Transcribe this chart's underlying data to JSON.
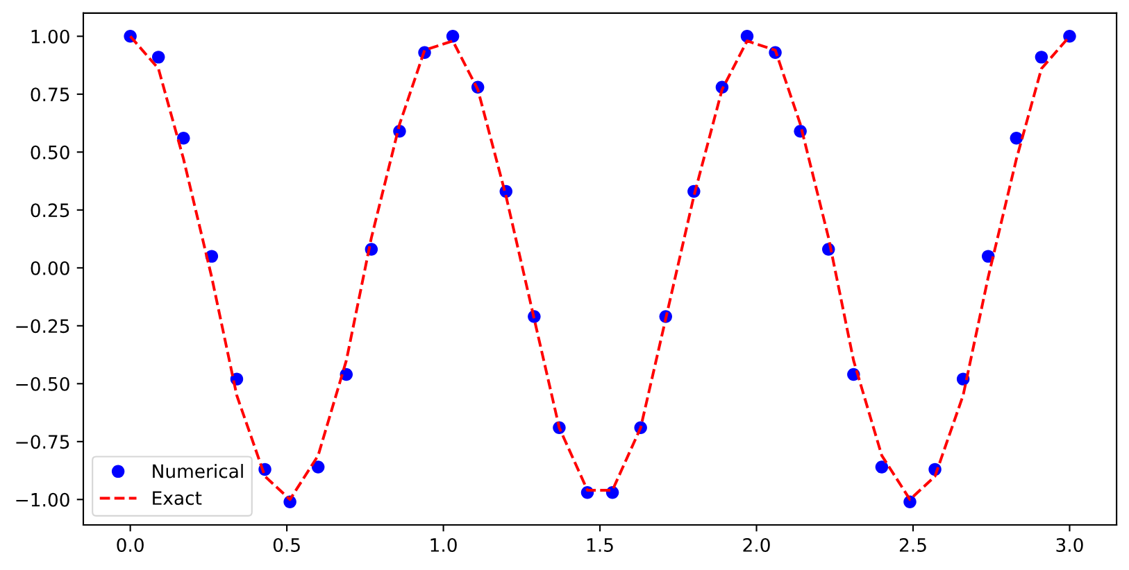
{
  "chart_data": {
    "type": "line",
    "x": [
      0,
      0.09,
      0.17,
      0.26,
      0.34,
      0.43,
      0.51,
      0.6,
      0.69,
      0.77,
      0.86,
      0.94,
      1.03,
      1.11,
      1.2,
      1.29,
      1.37,
      1.46,
      1.54,
      1.63,
      1.71,
      1.8,
      1.89,
      1.97,
      2.06,
      2.14,
      2.23,
      2.31,
      2.4,
      2.49,
      2.57,
      2.66,
      2.74,
      2.83,
      2.91,
      3.0
    ],
    "series": [
      {
        "name": "Numerical",
        "type": "scatter",
        "color": "#0000ff",
        "marker": "circle",
        "values": [
          1.0,
          0.91,
          0.56,
          0.05,
          -0.48,
          -0.87,
          -1.01,
          -0.86,
          -0.46,
          0.08,
          0.59,
          0.93,
          1.0,
          0.78,
          0.33,
          -0.21,
          -0.69,
          -0.97,
          -0.97,
          -0.69,
          -0.21,
          0.33,
          0.78,
          1.0,
          0.93,
          0.59,
          0.08,
          -0.46,
          -0.86,
          -1.01,
          -0.87,
          -0.48,
          0.05,
          0.56,
          0.91,
          1.0
        ]
      },
      {
        "name": "Exact",
        "color": "#ff0000",
        "line_style": "dashed",
        "values": [
          1.0,
          0.86,
          0.47,
          -0.04,
          -0.55,
          -0.9,
          -1.0,
          -0.81,
          -0.4,
          0.13,
          0.62,
          0.94,
          0.98,
          0.77,
          0.31,
          -0.22,
          -0.69,
          -0.96,
          -0.96,
          -0.69,
          -0.22,
          0.31,
          0.77,
          0.98,
          0.94,
          0.62,
          0.13,
          -0.4,
          -0.81,
          -1.0,
          -0.9,
          -0.55,
          -0.04,
          0.47,
          0.86,
          1.0
        ]
      }
    ],
    "xlim": [
      -0.15,
      3.15
    ],
    "ylim": [
      -1.11,
      1.1
    ],
    "xticks": [
      {
        "value": 0,
        "label": "0.0"
      },
      {
        "value": 0.5,
        "label": "0.5"
      },
      {
        "value": 1,
        "label": "1.0"
      },
      {
        "value": 1.5,
        "label": "1.5"
      },
      {
        "value": 2,
        "label": "2.0"
      },
      {
        "value": 2.5,
        "label": "2.5"
      },
      {
        "value": 3,
        "label": "3.0"
      }
    ],
    "yticks": [
      {
        "value": -1,
        "label": "−1.00"
      },
      {
        "value": -0.75,
        "label": "−0.75"
      },
      {
        "value": -0.5,
        "label": "−0.50"
      },
      {
        "value": -0.25,
        "label": "−0.25"
      },
      {
        "value": 0,
        "label": "0.00"
      },
      {
        "value": 0.25,
        "label": "0.25"
      },
      {
        "value": 0.5,
        "label": "0.50"
      },
      {
        "value": 0.75,
        "label": "0.75"
      },
      {
        "value": 1,
        "label": "1.00"
      }
    ],
    "legend": "bottom left"
  }
}
